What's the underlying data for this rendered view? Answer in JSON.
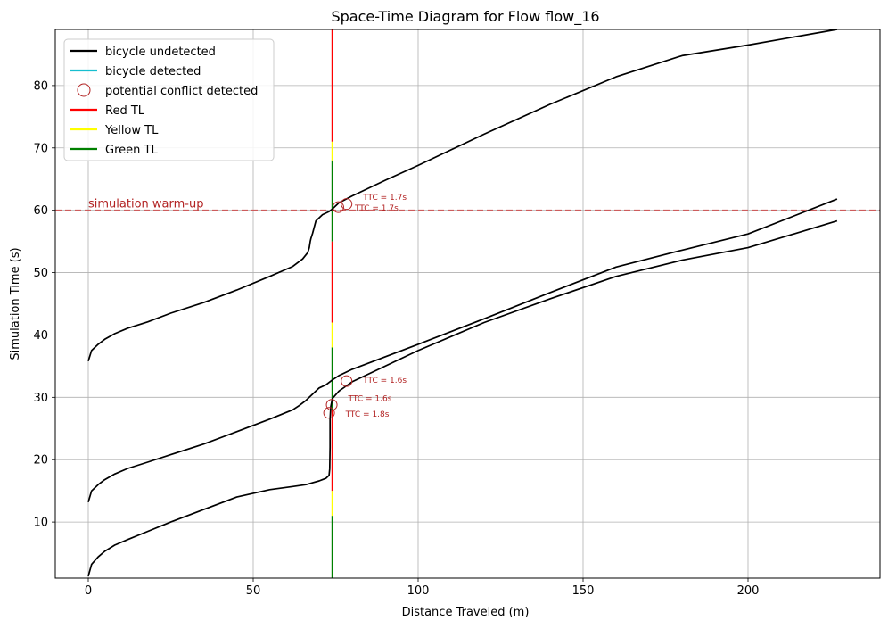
{
  "chart_data": {
    "type": "line",
    "title": "Space-Time Diagram for Flow flow_16",
    "xlabel": "Distance Traveled (m)",
    "ylabel": "Simulation Time (s)",
    "xlim": [
      -10,
      240
    ],
    "ylim": [
      1,
      89
    ],
    "xticks": [
      0,
      50,
      100,
      150,
      200
    ],
    "yticks": [
      10,
      20,
      30,
      40,
      50,
      60,
      70,
      80
    ],
    "grid": true,
    "legend_position": "top-left",
    "legend": [
      {
        "label": "bicycle undetected",
        "kind": "line",
        "color": "#000000"
      },
      {
        "label": "bicycle detected",
        "kind": "line",
        "color": "#17becf"
      },
      {
        "label": "potential conflict detected",
        "kind": "marker",
        "color": "#b22222"
      },
      {
        "label": "Red TL",
        "kind": "line",
        "color": "#ff0000"
      },
      {
        "label": "Yellow TL",
        "kind": "line",
        "color": "#ffff00"
      },
      {
        "label": "Green TL",
        "kind": "line",
        "color": "#008000"
      }
    ],
    "series": [
      {
        "color": "#000000",
        "x": [
          0,
          1,
          3,
          5,
          8,
          12,
          18,
          25,
          35,
          45,
          55,
          62,
          66,
          68,
          70,
          71,
          72,
          73,
          73.2,
          73.3,
          73.3,
          73.5,
          74,
          76,
          80,
          90,
          100,
          120,
          140,
          160,
          180,
          200,
          227
        ],
        "y": [
          1.3,
          3.2,
          4.4,
          5.3,
          6.3,
          7.2,
          8.5,
          10.0,
          12.0,
          14.0,
          15.2,
          15.7,
          16.0,
          16.3,
          16.6,
          16.8,
          17.0,
          17.5,
          18.5,
          22.0,
          26.5,
          28.5,
          29.8,
          31.0,
          32.5,
          35.0,
          37.5,
          42.0,
          45.8,
          49.4,
          52.0,
          54.0,
          58.3
        ]
      },
      {
        "color": "#000000",
        "x": [
          0,
          1,
          3,
          5,
          8,
          12,
          18,
          25,
          35,
          45,
          55,
          62,
          64,
          66,
          68,
          70,
          72,
          74,
          76,
          80,
          90,
          100,
          120,
          140,
          160,
          180,
          200,
          227
        ],
        "y": [
          13.2,
          15.0,
          16.0,
          16.8,
          17.7,
          18.6,
          19.6,
          20.8,
          22.5,
          24.5,
          26.5,
          28.0,
          28.7,
          29.5,
          30.5,
          31.5,
          32.0,
          32.8,
          33.5,
          34.5,
          36.5,
          38.5,
          42.6,
          46.8,
          50.9,
          53.6,
          56.2,
          61.8
        ]
      },
      {
        "color": "#000000",
        "x": [
          0,
          1,
          3,
          5,
          8,
          12,
          18,
          25,
          35,
          45,
          55,
          62,
          65,
          66.5,
          67,
          67.3,
          67.5,
          68,
          69,
          71,
          73,
          74,
          76,
          80,
          90,
          100,
          120,
          140,
          160,
          180,
          200,
          227
        ],
        "y": [
          35.8,
          37.5,
          38.5,
          39.3,
          40.2,
          41.1,
          42.1,
          43.5,
          45.2,
          47.2,
          49.4,
          51.0,
          52.2,
          53.2,
          54.0,
          55.0,
          55.5,
          56.3,
          58.3,
          59.3,
          59.8,
          60.2,
          61.2,
          62.3,
          64.8,
          67.2,
          72.2,
          77.0,
          81.4,
          84.8,
          86.5,
          89.0
        ]
      }
    ],
    "traffic_light": {
      "x": 74,
      "segments": [
        {
          "state": "Green TL",
          "color": "#008000",
          "y0": 1,
          "y1": 11
        },
        {
          "state": "Yellow TL",
          "color": "#ffff00",
          "y0": 11,
          "y1": 15
        },
        {
          "state": "Red TL",
          "color": "#ff0000",
          "y0": 15,
          "y1": 28
        },
        {
          "state": "Green TL",
          "color": "#008000",
          "y0": 28,
          "y1": 38
        },
        {
          "state": "Yellow TL",
          "color": "#ffff00",
          "y0": 38,
          "y1": 42
        },
        {
          "state": "Red TL",
          "color": "#ff0000",
          "y0": 42,
          "y1": 55
        },
        {
          "state": "Green TL",
          "color": "#008000",
          "y0": 55,
          "y1": 68
        },
        {
          "state": "Yellow TL",
          "color": "#ffff00",
          "y0": 68,
          "y1": 71
        },
        {
          "state": "Red TL",
          "color": "#ff0000",
          "y0": 71,
          "y1": 89
        }
      ]
    },
    "warmup_line": {
      "y": 60,
      "label": "simulation warm-up",
      "color": "#cd5c5c"
    },
    "conflicts": [
      {
        "x": 73,
        "y": 27.5,
        "label": "TTC = 1.8s",
        "label_dx": 5,
        "label_dy": -0.2
      },
      {
        "x": 73.8,
        "y": 28.8,
        "label": "TTC = 1.6s",
        "label_dx": 5,
        "label_dy": 1.0
      },
      {
        "x": 78.3,
        "y": 32.6,
        "label": "TTC = 1.6s",
        "label_dx": 5,
        "label_dy": 0.2
      },
      {
        "x": 75.8,
        "y": 60.5,
        "label": "TTC = 1.7s",
        "label_dx": 5,
        "label_dy": -0.1
      },
      {
        "x": 78.3,
        "y": 61.0,
        "label": "TTC = 1.7s",
        "label_dx": 5,
        "label_dy": 1.1
      }
    ],
    "conflict_color": "#b22222"
  }
}
